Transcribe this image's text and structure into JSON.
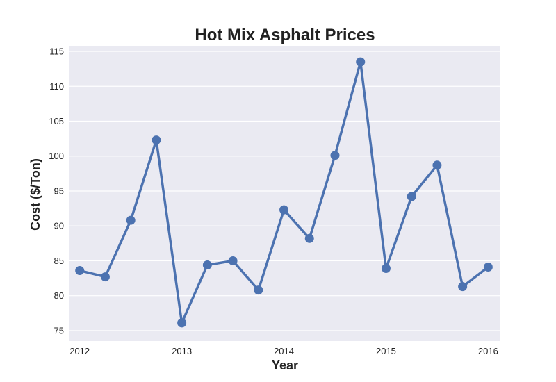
{
  "chart_data": {
    "type": "line",
    "title": "Hot Mix Asphalt Prices",
    "xlabel": "Year",
    "ylabel": "Cost ($/Ton)",
    "xlim": [
      2011.9,
      2016.12
    ],
    "ylim": [
      73.5,
      115.8
    ],
    "x_ticks": [
      2012,
      2013,
      2014,
      2015,
      2016
    ],
    "y_ticks": [
      75,
      80,
      85,
      90,
      95,
      100,
      105,
      110,
      115
    ],
    "grid": true,
    "legend": "none",
    "series": [
      {
        "color": "#4c72b0",
        "x": [
          2012.0,
          2012.25,
          2012.5,
          2012.75,
          2013.0,
          2013.25,
          2013.5,
          2013.75,
          2014.0,
          2014.25,
          2014.5,
          2014.75,
          2015.0,
          2015.25,
          2015.5,
          2015.75,
          2016.0
        ],
        "y": [
          83.6,
          82.7,
          90.8,
          102.3,
          76.1,
          84.4,
          85.0,
          80.8,
          92.3,
          88.2,
          100.1,
          113.5,
          83.9,
          94.2,
          98.7,
          81.3,
          84.1
        ]
      }
    ]
  },
  "colors": {
    "plot_background": "#eaeaf2",
    "grid": "#ffffff",
    "line": "#4c72b0"
  }
}
